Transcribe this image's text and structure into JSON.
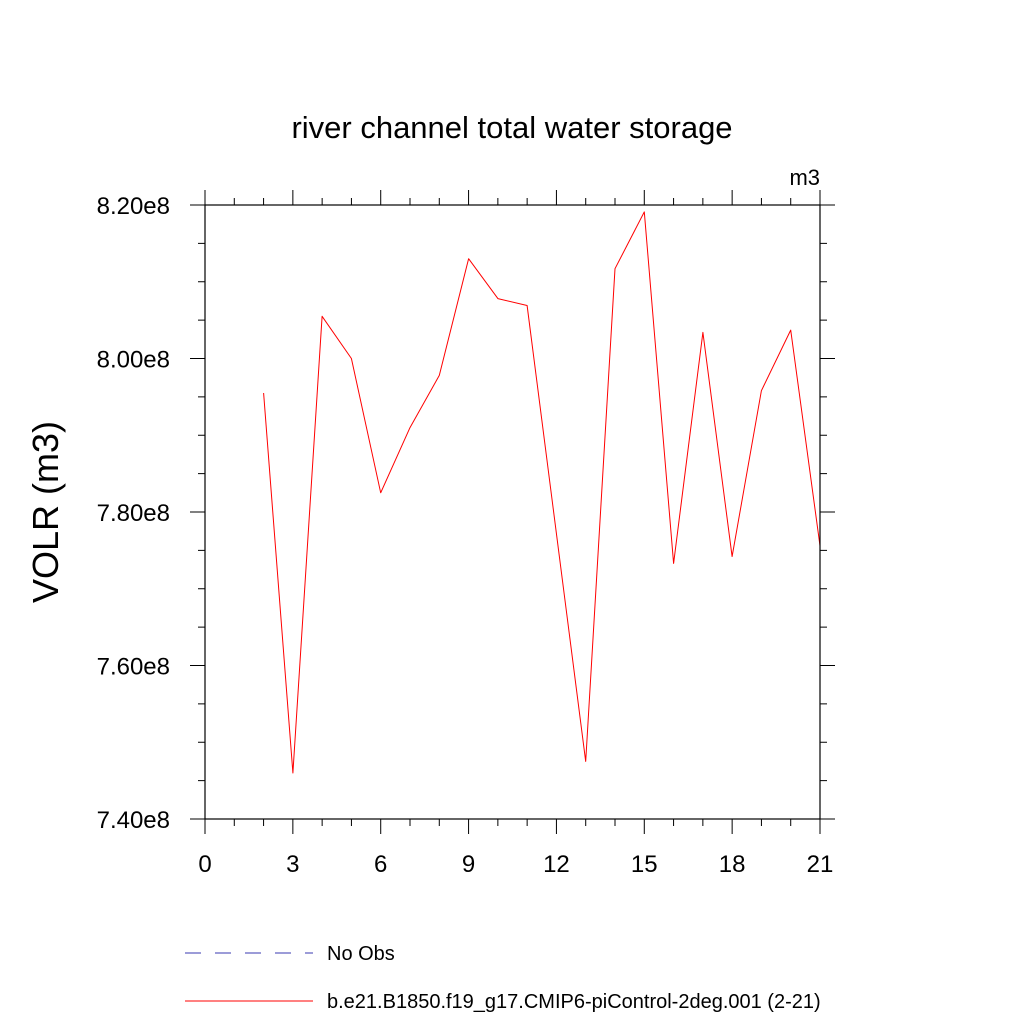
{
  "chart_data": {
    "type": "line",
    "title": "river channel total water storage",
    "units_label": "m3",
    "xlabel": "",
    "ylabel": "VOLR  (m3)",
    "xlim": [
      0,
      21
    ],
    "ylim": [
      740000000,
      820000000
    ],
    "x_ticks": [
      0,
      3,
      6,
      9,
      12,
      15,
      18,
      21
    ],
    "x_tick_labels": [
      "0",
      "3",
      "6",
      "9",
      "12",
      "15",
      "18",
      "21"
    ],
    "y_ticks": [
      740000000,
      760000000,
      780000000,
      800000000,
      820000000
    ],
    "y_tick_labels": [
      "7.40e8",
      "7.60e8",
      "7.80e8",
      "8.00e8",
      "8.20e8"
    ],
    "grid": false,
    "legend_position": "bottom",
    "series": [
      {
        "name": "No Obs",
        "color": "#3a3ab0",
        "dash": true,
        "x": [],
        "y": []
      },
      {
        "name": "b.e21.B1850.f19_g17.CMIP6-piControl-2deg.001 (2-21)",
        "color": "#ff0000",
        "dash": false,
        "x": [
          2,
          3,
          4,
          5,
          6,
          7,
          8,
          9,
          10,
          11,
          13,
          14,
          15,
          16,
          17,
          18,
          19,
          20,
          21
        ],
        "y": [
          795500000,
          746000000,
          805500000,
          800000000,
          782500000,
          791000000,
          797800000,
          813000000,
          807800000,
          806900000,
          747500000,
          811700000,
          819100000,
          773300000,
          803400000,
          774200000,
          795800000,
          803700000,
          775600000
        ]
      }
    ]
  }
}
